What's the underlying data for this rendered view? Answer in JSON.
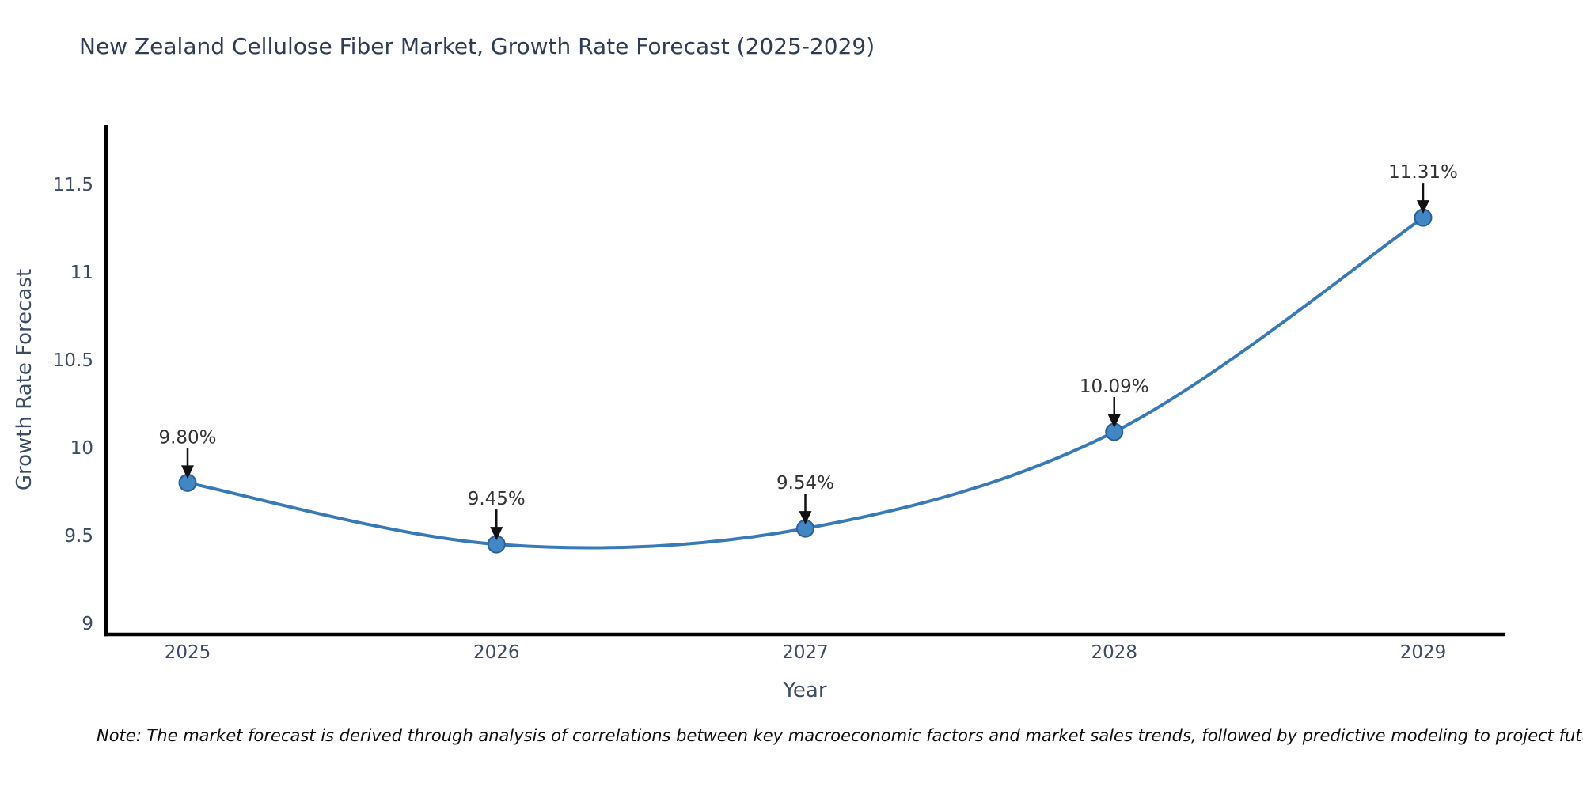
{
  "chart_data": {
    "type": "line",
    "title": "New Zealand Cellulose Fiber Market, Growth Rate Forecast (2025-2029)",
    "xlabel": "Year",
    "ylabel": "Growth Rate Forecast",
    "x": [
      2025,
      2026,
      2027,
      2028,
      2029
    ],
    "series": [
      {
        "name": "Growth Rate Forecast",
        "values": [
          9.8,
          9.45,
          9.54,
          10.09,
          11.31
        ],
        "point_labels": [
          "9.80%",
          "9.45%",
          "9.54%",
          "10.09%",
          "11.31%"
        ]
      }
    ],
    "yticks": [
      9,
      9.5,
      10,
      10.5,
      11,
      11.5
    ],
    "ylim": [
      9,
      11.84
    ],
    "xlim": [
      2024.74,
      2029.26
    ],
    "grid": false,
    "legend": "none",
    "curve": "spline",
    "colors": {
      "line": "#3879b8",
      "marker_fill": "#4287c5",
      "marker_edge": "#2b5f96",
      "axis": "#000000",
      "tick_text": "#3c4b66",
      "annotation_text": "#333333",
      "arrow": "#111111",
      "title_text": "#2f3c57"
    }
  },
  "note": "Note: The market forecast is derived through analysis of correlations between key macroeconomic factors and market sales trends, followed by predictive modeling to project future sal"
}
